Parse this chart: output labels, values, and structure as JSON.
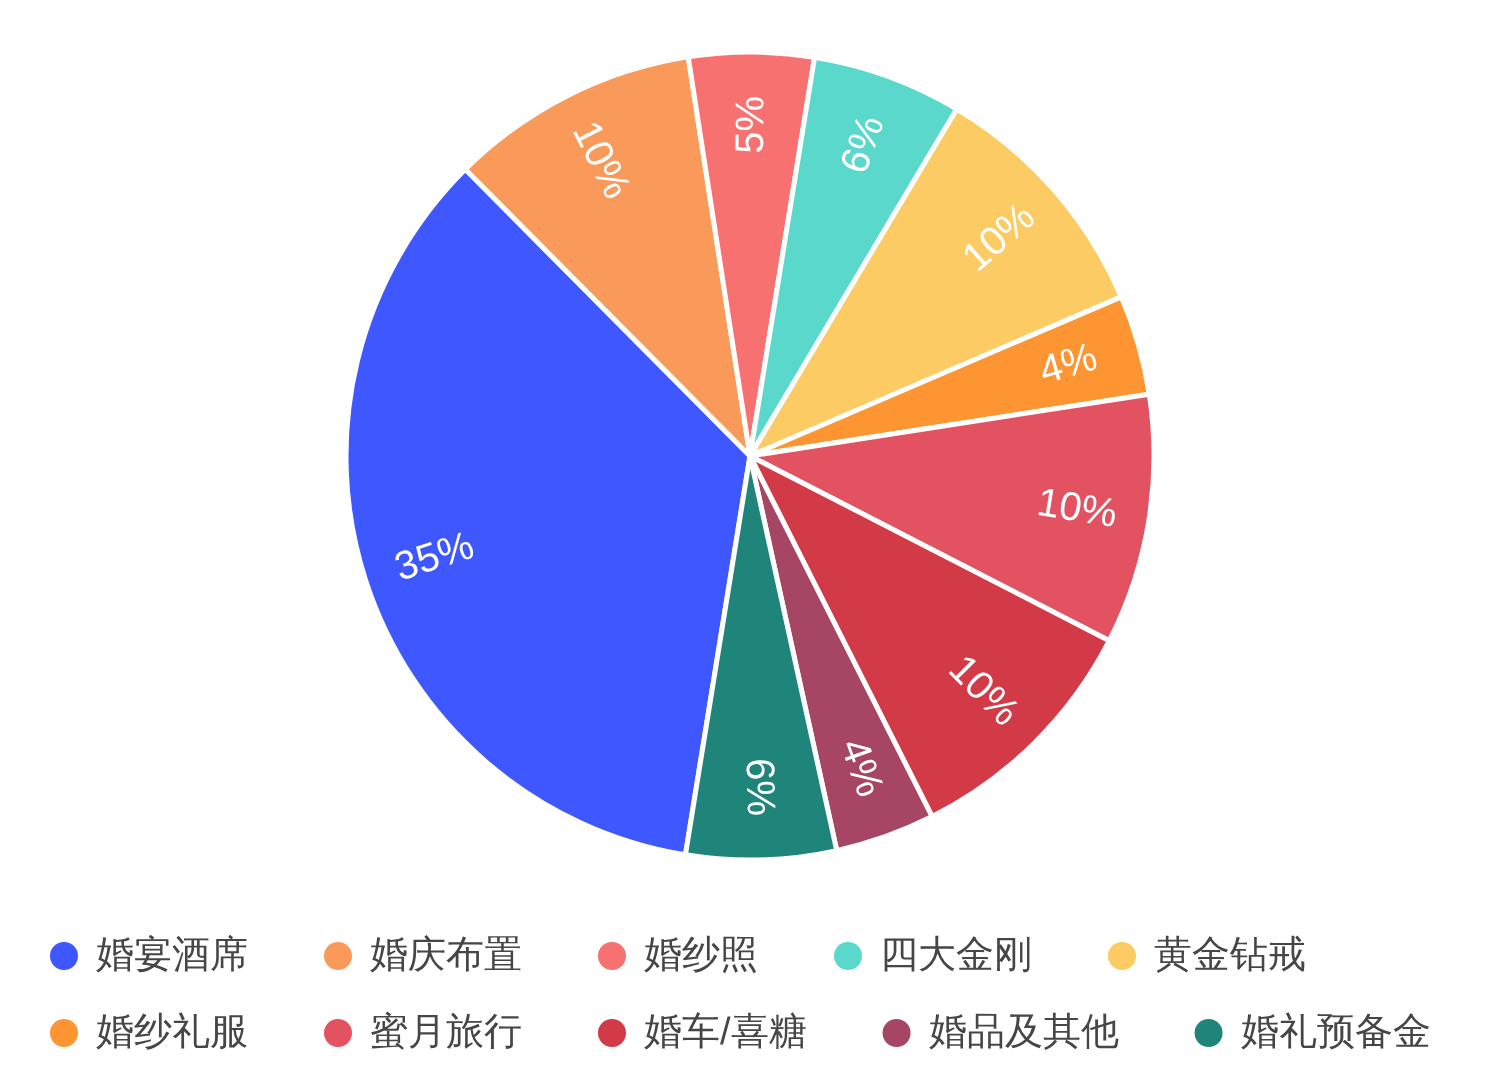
{
  "chart_data": {
    "type": "pie",
    "categories": [
      "婚宴酒席",
      "婚庆布置",
      "婚纱照",
      "四大金刚",
      "黄金钻戒",
      "婚纱礼服",
      "蜜月旅行",
      "婚车/喜糖",
      "婚品及其他",
      "婚礼预备金"
    ],
    "values": [
      35,
      10,
      5,
      6,
      10,
      4,
      10,
      10,
      4,
      6
    ],
    "value_labels": [
      "35%",
      "10%",
      "5%",
      "6%",
      "10%",
      "4%",
      "10%",
      "10%",
      "4%",
      "6%"
    ],
    "colors": [
      "#3f57ff",
      "#f99a5b",
      "#f87171",
      "#5ad8cc",
      "#fccb64",
      "#fd9533",
      "#e35261",
      "#d13a46",
      "#a64664",
      "#1f857a"
    ],
    "legend": "bottom"
  }
}
